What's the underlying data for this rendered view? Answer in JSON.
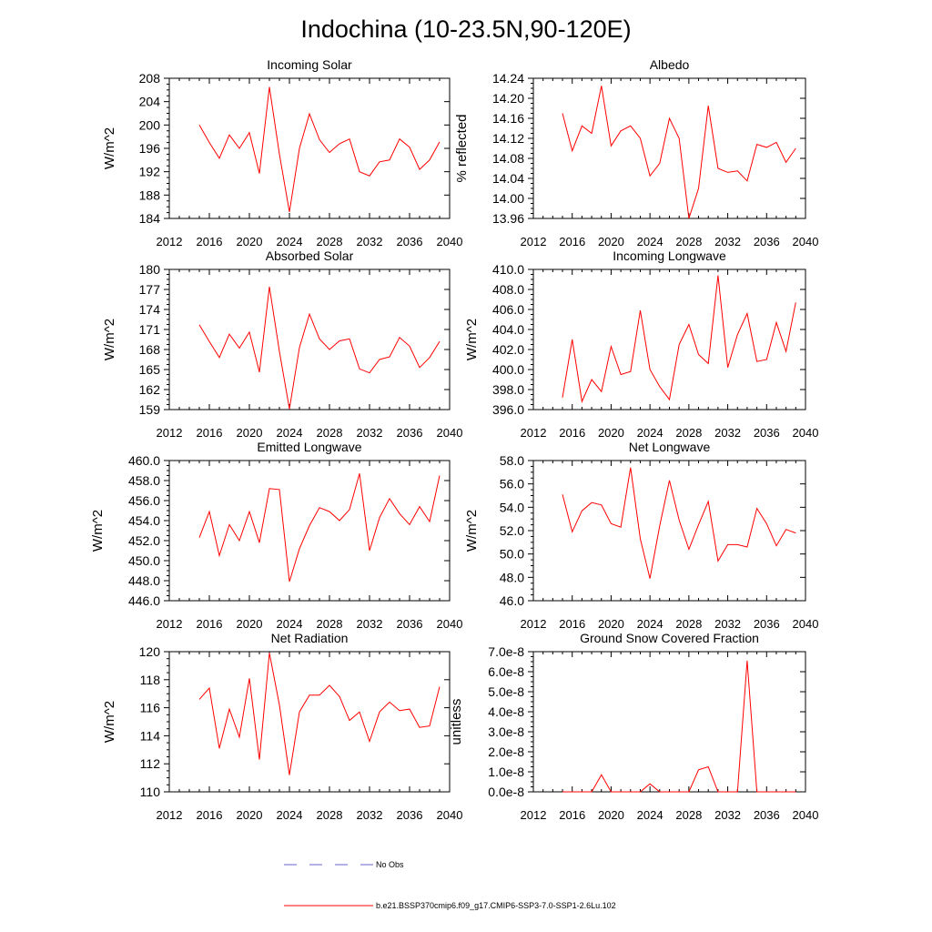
{
  "title": "Indochina (10-23.5N,90-120E)",
  "colors": {
    "model": "#ff0000",
    "obs": "#6666cc",
    "axis": "#000000"
  },
  "legend": {
    "obs_label": "No Obs",
    "model_label": "b.e21.BSSP370cmip6.f09_g17.CMIP6-SSP3-7.0-SSP1-2.6Lu.102"
  },
  "chart_data": [
    {
      "type": "line",
      "title": "Incoming Solar",
      "ylabel": "W/m^2",
      "xlim": [
        2012,
        2040
      ],
      "ylim": [
        184,
        208
      ],
      "xticks": [
        "2012",
        "2016",
        "2020",
        "2024",
        "2028",
        "2032",
        "2036",
        "2040"
      ],
      "yticks": [
        "184",
        "188",
        "192",
        "196",
        "200",
        "204",
        "208"
      ],
      "x": [
        2015,
        2016,
        2017,
        2018,
        2019,
        2020,
        2021,
        2022,
        2023,
        2024,
        2025,
        2026,
        2027,
        2028,
        2029,
        2030,
        2031,
        2032,
        2033,
        2034,
        2035,
        2036,
        2037,
        2038,
        2039
      ],
      "series": [
        {
          "values": [
            200.0,
            197.0,
            194.3,
            198.3,
            196.0,
            198.7,
            191.7,
            206.5,
            195.0,
            185.1,
            196.0,
            201.9,
            197.5,
            195.3,
            196.8,
            197.6,
            192.0,
            191.3,
            193.7,
            194.0,
            197.6,
            196.2,
            192.4,
            194.0,
            197.1
          ]
        }
      ]
    },
    {
      "type": "line",
      "title": "Albedo",
      "ylabel": "% reflected",
      "xlim": [
        2012,
        2040
      ],
      "ylim": [
        13.96,
        14.24
      ],
      "xticks": [
        "2012",
        "2016",
        "2020",
        "2024",
        "2028",
        "2032",
        "2036",
        "2040"
      ],
      "yticks": [
        "13.96",
        "14.00",
        "14.04",
        "14.08",
        "14.12",
        "14.16",
        "14.20",
        "14.24"
      ],
      "x": [
        2015,
        2016,
        2017,
        2018,
        2019,
        2020,
        2021,
        2022,
        2023,
        2024,
        2025,
        2026,
        2027,
        2028,
        2029,
        2030,
        2031,
        2032,
        2033,
        2034,
        2035,
        2036,
        2037,
        2038,
        2039
      ],
      "series": [
        {
          "values": [
            14.17,
            14.095,
            14.145,
            14.13,
            14.225,
            14.105,
            14.135,
            14.145,
            14.12,
            14.045,
            14.07,
            14.16,
            14.12,
            13.96,
            14.02,
            14.185,
            14.06,
            14.052,
            14.055,
            14.035,
            14.108,
            14.102,
            14.112,
            14.072,
            14.1
          ]
        }
      ]
    },
    {
      "type": "line",
      "title": "Absorbed Solar",
      "ylabel": "W/m^2",
      "xlim": [
        2012,
        2040
      ],
      "ylim": [
        159,
        180
      ],
      "xticks": [
        "2012",
        "2016",
        "2020",
        "2024",
        "2028",
        "2032",
        "2036",
        "2040"
      ],
      "yticks": [
        "159",
        "162",
        "165",
        "168",
        "171",
        "174",
        "177",
        "180"
      ],
      "x": [
        2015,
        2016,
        2017,
        2018,
        2019,
        2020,
        2021,
        2022,
        2023,
        2024,
        2025,
        2026,
        2027,
        2028,
        2029,
        2030,
        2031,
        2032,
        2033,
        2034,
        2035,
        2036,
        2037,
        2038,
        2039
      ],
      "series": [
        {
          "values": [
            171.7,
            169.2,
            166.8,
            170.3,
            168.2,
            170.6,
            164.6,
            177.4,
            167.7,
            159.1,
            168.3,
            173.3,
            169.6,
            168.0,
            169.3,
            169.6,
            165.1,
            164.5,
            166.5,
            166.9,
            169.8,
            168.5,
            165.3,
            166.8,
            169.2
          ]
        }
      ]
    },
    {
      "type": "line",
      "title": "Incoming Longwave",
      "ylabel": "W/m^2",
      "xlim": [
        2012,
        2040
      ],
      "ylim": [
        396,
        410
      ],
      "xticks": [
        "2012",
        "2016",
        "2020",
        "2024",
        "2028",
        "2032",
        "2036",
        "2040"
      ],
      "yticks": [
        "396.0",
        "398.0",
        "400.0",
        "402.0",
        "404.0",
        "406.0",
        "408.0",
        "410.0"
      ],
      "x": [
        2015,
        2016,
        2017,
        2018,
        2019,
        2020,
        2021,
        2022,
        2023,
        2024,
        2025,
        2026,
        2027,
        2028,
        2029,
        2030,
        2031,
        2032,
        2033,
        2034,
        2035,
        2036,
        2037,
        2038,
        2039
      ],
      "series": [
        {
          "values": [
            397.2,
            403.0,
            396.8,
            399.0,
            397.8,
            402.3,
            399.5,
            399.8,
            405.9,
            400.0,
            398.3,
            397.0,
            402.5,
            404.5,
            401.5,
            400.6,
            409.4,
            400.2,
            403.5,
            405.6,
            400.8,
            401.0,
            404.7,
            401.8,
            406.7
          ]
        }
      ]
    },
    {
      "type": "line",
      "title": "Emitted Longwave",
      "ylabel": "W/m^2",
      "xlim": [
        2012,
        2040
      ],
      "ylim": [
        446,
        460
      ],
      "xticks": [
        "2012",
        "2016",
        "2020",
        "2024",
        "2028",
        "2032",
        "2036",
        "2040"
      ],
      "yticks": [
        "446.0",
        "448.0",
        "450.0",
        "452.0",
        "454.0",
        "456.0",
        "458.0",
        "460.0"
      ],
      "x": [
        2015,
        2016,
        2017,
        2018,
        2019,
        2020,
        2021,
        2022,
        2023,
        2024,
        2025,
        2026,
        2027,
        2028,
        2029,
        2030,
        2031,
        2032,
        2033,
        2034,
        2035,
        2036,
        2037,
        2038,
        2039
      ],
      "series": [
        {
          "values": [
            452.3,
            454.9,
            450.5,
            453.6,
            452.0,
            454.9,
            451.8,
            457.2,
            457.1,
            447.9,
            451.2,
            453.5,
            455.3,
            454.9,
            454.0,
            455.1,
            458.7,
            451.0,
            454.3,
            456.2,
            454.7,
            453.6,
            455.4,
            453.9,
            458.5
          ]
        }
      ]
    },
    {
      "type": "line",
      "title": "Net Longwave",
      "ylabel": "W/m^2",
      "xlim": [
        2012,
        2040
      ],
      "ylim": [
        46,
        58
      ],
      "xticks": [
        "2012",
        "2016",
        "2020",
        "2024",
        "2028",
        "2032",
        "2036",
        "2040"
      ],
      "yticks": [
        "46.0",
        "48.0",
        "50.0",
        "52.0",
        "54.0",
        "56.0",
        "58.0"
      ],
      "x": [
        2015,
        2016,
        2017,
        2018,
        2019,
        2020,
        2021,
        2022,
        2023,
        2024,
        2025,
        2026,
        2027,
        2028,
        2029,
        2030,
        2031,
        2032,
        2033,
        2034,
        2035,
        2036,
        2037,
        2038,
        2039
      ],
      "series": [
        {
          "values": [
            55.1,
            51.9,
            53.7,
            54.4,
            54.2,
            52.6,
            52.3,
            57.4,
            51.3,
            47.9,
            52.4,
            56.3,
            52.9,
            50.4,
            52.5,
            54.5,
            49.4,
            50.8,
            50.8,
            50.6,
            53.9,
            52.6,
            50.7,
            52.1,
            51.8
          ]
        }
      ]
    },
    {
      "type": "line",
      "title": "Net Radiation",
      "ylabel": "W/m^2",
      "xlim": [
        2012,
        2040
      ],
      "ylim": [
        110,
        120
      ],
      "xticks": [
        "2012",
        "2016",
        "2020",
        "2024",
        "2028",
        "2032",
        "2036",
        "2040"
      ],
      "yticks": [
        "110",
        "112",
        "114",
        "116",
        "118",
        "120"
      ],
      "x": [
        2015,
        2016,
        2017,
        2018,
        2019,
        2020,
        2021,
        2022,
        2023,
        2024,
        2025,
        2026,
        2027,
        2028,
        2029,
        2030,
        2031,
        2032,
        2033,
        2034,
        2035,
        2036,
        2037,
        2038,
        2039
      ],
      "series": [
        {
          "values": [
            116.6,
            117.4,
            113.1,
            115.9,
            113.9,
            118.1,
            112.3,
            119.9,
            116.2,
            111.2,
            115.7,
            116.9,
            116.9,
            117.6,
            116.8,
            115.1,
            115.7,
            113.6,
            115.7,
            116.4,
            115.8,
            115.9,
            114.6,
            114.7,
            117.5
          ]
        }
      ]
    },
    {
      "type": "line",
      "title": "Ground Snow Covered Fraction",
      "ylabel": "unitless",
      "xlim": [
        2012,
        2040
      ],
      "ylim": [
        0,
        7e-08
      ],
      "xticks": [
        "2012",
        "2016",
        "2020",
        "2024",
        "2028",
        "2032",
        "2036",
        "2040"
      ],
      "yticks": [
        "0.0e-8",
        "1.0e-8",
        "2.0e-8",
        "3.0e-8",
        "4.0e-8",
        "5.0e-8",
        "6.0e-8",
        "7.0e-8"
      ],
      "x": [
        2015,
        2016,
        2017,
        2018,
        2019,
        2020,
        2021,
        2022,
        2023,
        2024,
        2025,
        2026,
        2027,
        2028,
        2029,
        2030,
        2031,
        2032,
        2033,
        2034,
        2035,
        2036,
        2037,
        2038,
        2039
      ],
      "series": [
        {
          "values": [
            0,
            0,
            0,
            0,
            8.5e-09,
            0,
            0,
            0,
            0,
            4e-09,
            0,
            0,
            0,
            0,
            1.1e-08,
            1.25e-08,
            0,
            0,
            0,
            6.55e-08,
            0,
            0,
            0,
            0,
            0
          ]
        }
      ]
    }
  ]
}
